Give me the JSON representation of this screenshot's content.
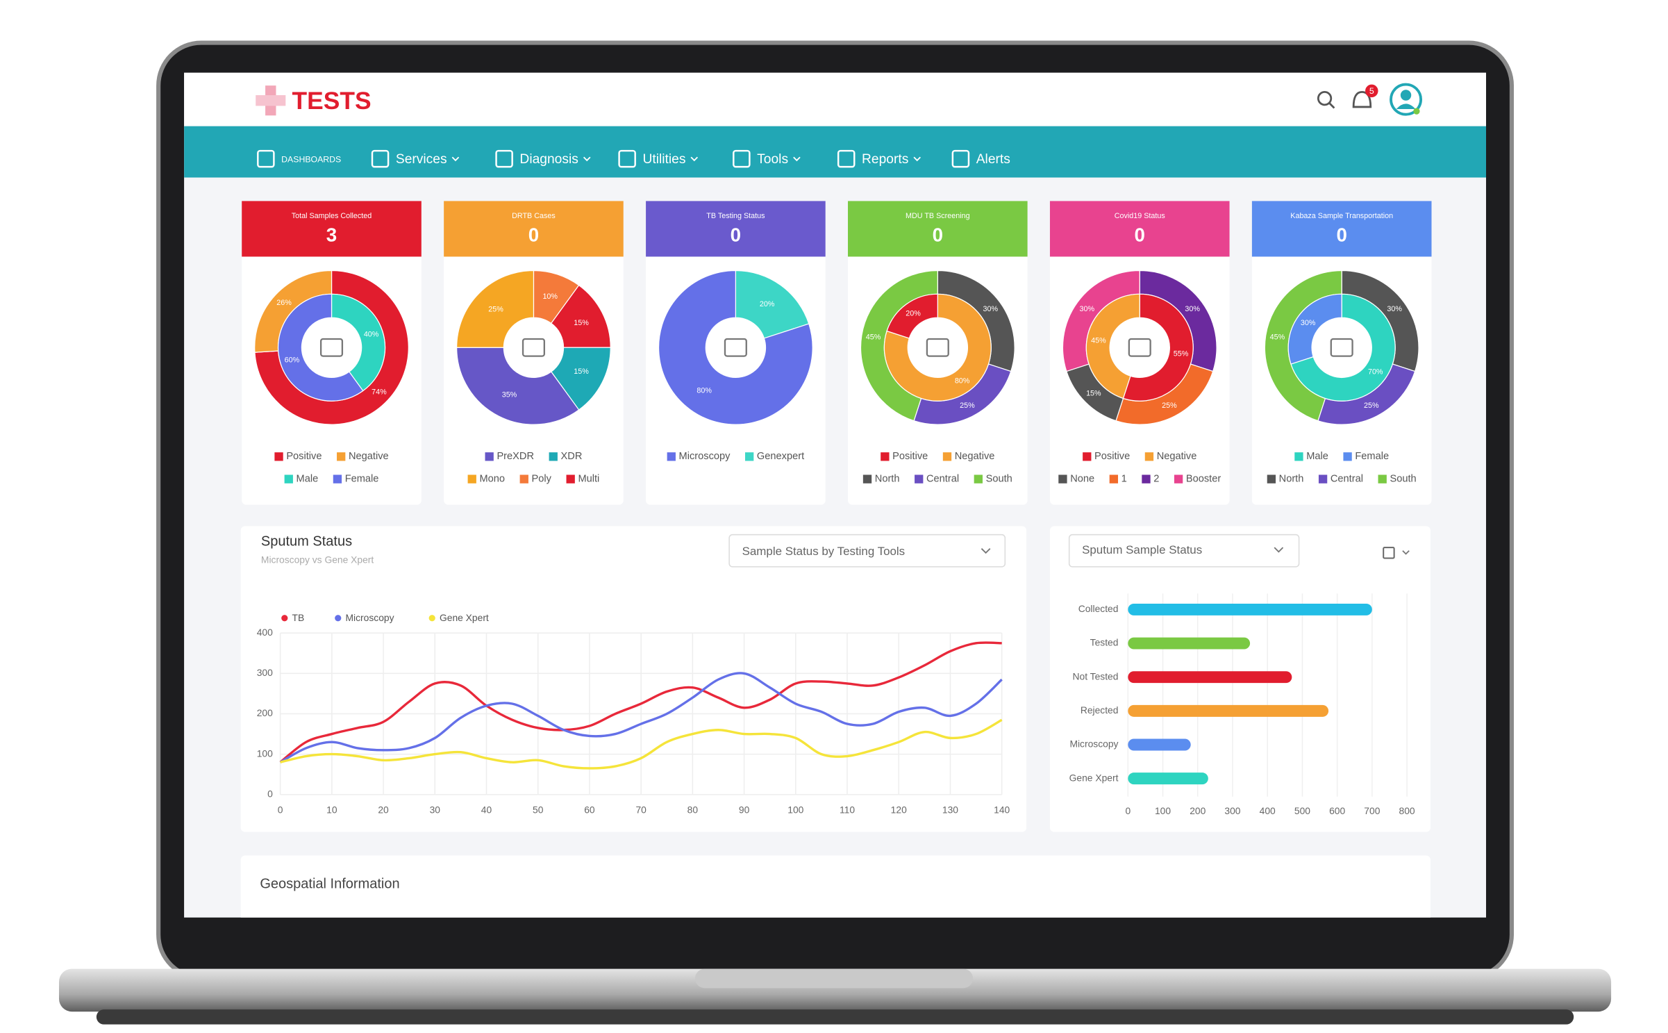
{
  "header": {
    "logo": "TESTS",
    "notifications": 5
  },
  "nav": [
    {
      "label": "DASHBOARDS",
      "has_menu": false
    },
    {
      "label": "Services",
      "has_menu": true
    },
    {
      "label": "Diagnosis",
      "has_menu": true
    },
    {
      "label": "Utilities",
      "has_menu": true
    },
    {
      "label": "Tools",
      "has_menu": true
    },
    {
      "label": "Reports",
      "has_menu": true
    },
    {
      "label": "Alerts",
      "has_menu": false
    }
  ],
  "cards": [
    {
      "title": "Total Samples Collected",
      "count": 3,
      "color": "#e11d2e",
      "chart": {
        "type": "donut",
        "rings": [
          {
            "values": [
              74,
              26
            ],
            "value_labels": [
              "74%",
              "26%"
            ],
            "colors": [
              "#e11d2e",
              "#f5a033"
            ]
          },
          {
            "values": [
              40,
              60
            ],
            "value_labels": [
              "40%",
              "60%"
            ],
            "colors": [
              "#2ed4c0",
              "#6470e8"
            ]
          }
        ],
        "legend": [
          [
            {
              "name": "Positive",
              "color": "#e11d2e"
            },
            {
              "name": "Negative",
              "color": "#f5a033"
            }
          ],
          [
            {
              "name": "Male",
              "color": "#2ed4c0"
            },
            {
              "name": "Female",
              "color": "#6470e8"
            }
          ]
        ]
      }
    },
    {
      "title": "DRTB Cases",
      "count": 0,
      "color": "#f5a033",
      "chart": {
        "type": "donut",
        "rings": [
          {
            "values": [
              10,
              15,
              15,
              35,
              25
            ],
            "value_labels": [
              "10%",
              "15%",
              "15%",
              "35%",
              "25%"
            ],
            "colors": [
              "#f47a3a",
              "#e11d2e",
              "#1ea9b5",
              "#6657c7",
              "#f5a623"
            ]
          }
        ],
        "legend": [
          [
            {
              "name": "PreXDR",
              "color": "#6657c7"
            },
            {
              "name": "XDR",
              "color": "#1ea9b5"
            }
          ],
          [
            {
              "name": "Mono",
              "color": "#f5a623"
            },
            {
              "name": "Poly",
              "color": "#f47a3a"
            },
            {
              "name": "Multi",
              "color": "#e11d2e"
            }
          ]
        ]
      }
    },
    {
      "title": "TB Testing Status",
      "count": 0,
      "color": "#6a5acd",
      "chart": {
        "type": "donut",
        "rings": [
          {
            "values": [
              20,
              80
            ],
            "value_labels": [
              "20%",
              "80%"
            ],
            "colors": [
              "#3dd6c6",
              "#6470e8"
            ]
          }
        ],
        "legend": [
          [
            {
              "name": "Microscopy",
              "color": "#6470e8"
            },
            {
              "name": "Genexpert",
              "color": "#3dd6c6"
            }
          ]
        ]
      }
    },
    {
      "title": "MDU TB Screening",
      "count": 0,
      "color": "#7ac943",
      "chart": {
        "type": "donut",
        "rings": [
          {
            "values": [
              30,
              25,
              45
            ],
            "value_labels": [
              "30%",
              "25%",
              "45%"
            ],
            "colors": [
              "#555555",
              "#6a4fc2",
              "#7ac943"
            ]
          },
          {
            "values": [
              80,
              20
            ],
            "value_labels": [
              "80%",
              "20%"
            ],
            "colors": [
              "#f5a033",
              "#e11d2e"
            ]
          }
        ],
        "legend": [
          [
            {
              "name": "Positive",
              "color": "#e11d2e"
            },
            {
              "name": "Negative",
              "color": "#f5a033"
            }
          ],
          [
            {
              "name": "North",
              "color": "#555555"
            },
            {
              "name": "Central",
              "color": "#6a4fc2"
            },
            {
              "name": "South",
              "color": "#7ac943"
            }
          ]
        ]
      }
    },
    {
      "title": "Covid19 Status",
      "count": 0,
      "color": "#e8438f",
      "chart": {
        "type": "donut",
        "rings": [
          {
            "values": [
              30,
              25,
              15,
              30
            ],
            "value_labels": [
              "30%",
              "25%",
              "15%",
              "30%"
            ],
            "colors": [
              "#6b2a9e",
              "#f26b2a",
              "#555555",
              "#e8438f"
            ]
          },
          {
            "values": [
              55,
              45
            ],
            "value_labels": [
              "55%",
              "45%"
            ],
            "colors": [
              "#e11d2e",
              "#f5a033"
            ]
          }
        ],
        "legend": [
          [
            {
              "name": "Positive",
              "color": "#e11d2e"
            },
            {
              "name": "Negative",
              "color": "#f5a033"
            }
          ],
          [
            {
              "name": "None",
              "color": "#555555"
            },
            {
              "name": "1",
              "color": "#f26b2a"
            },
            {
              "name": "2",
              "color": "#6b2a9e"
            },
            {
              "name": "Booster",
              "color": "#e8438f"
            }
          ]
        ]
      }
    },
    {
      "title": "Kabaza Sample Transportation",
      "count": 0,
      "color": "#5b8def",
      "chart": {
        "type": "donut",
        "rings": [
          {
            "values": [
              30,
              25,
              45
            ],
            "value_labels": [
              "30%",
              "25%",
              "45%"
            ],
            "colors": [
              "#555555",
              "#6a4fc2",
              "#7ac943"
            ]
          },
          {
            "values": [
              70,
              30
            ],
            "value_labels": [
              "70%",
              "30%"
            ],
            "colors": [
              "#2ed4c0",
              "#5b8def"
            ]
          }
        ],
        "legend": [
          [
            {
              "name": "Male",
              "color": "#2ed4c0"
            },
            {
              "name": "Female",
              "color": "#5b8def"
            }
          ],
          [
            {
              "name": "North",
              "color": "#555555"
            },
            {
              "name": "Central",
              "color": "#6a4fc2"
            },
            {
              "name": "South",
              "color": "#7ac943"
            }
          ]
        ]
      }
    }
  ],
  "sputum": {
    "title": "Sputum Status",
    "subtitle": "Microscopy vs Gene Xpert",
    "dropdown": "Sample Status by Testing Tools",
    "chart_data": {
      "type": "line",
      "x": [
        0,
        5,
        10,
        15,
        20,
        25,
        30,
        35,
        40,
        45,
        50,
        55,
        60,
        65,
        70,
        75,
        80,
        85,
        90,
        95,
        100,
        105,
        110,
        115,
        120,
        125,
        130,
        135,
        140
      ],
      "series": [
        {
          "name": "TB",
          "color": "#e8283a",
          "values": [
            80,
            130,
            150,
            165,
            180,
            230,
            275,
            270,
            220,
            185,
            165,
            160,
            170,
            200,
            225,
            255,
            265,
            240,
            215,
            235,
            275,
            280,
            275,
            270,
            290,
            320,
            355,
            375,
            375
          ]
        },
        {
          "name": "Microscopy",
          "color": "#6470e8",
          "values": [
            80,
            115,
            130,
            115,
            110,
            115,
            140,
            190,
            220,
            225,
            195,
            160,
            145,
            150,
            175,
            200,
            240,
            285,
            300,
            265,
            225,
            205,
            175,
            175,
            205,
            215,
            195,
            225,
            285
          ]
        },
        {
          "name": "Gene Xpert",
          "color": "#f5e43a",
          "values": [
            80,
            95,
            100,
            95,
            85,
            90,
            100,
            105,
            90,
            80,
            85,
            70,
            65,
            70,
            90,
            130,
            150,
            160,
            150,
            150,
            140,
            100,
            95,
            110,
            130,
            155,
            140,
            150,
            185
          ]
        }
      ],
      "xlim": [
        0,
        140
      ],
      "xticks": [
        0,
        10,
        20,
        30,
        40,
        50,
        60,
        70,
        80,
        90,
        100,
        110,
        120,
        130,
        140
      ],
      "ylim": [
        0,
        400
      ],
      "yticks": [
        0,
        100,
        200,
        300,
        400
      ],
      "grid": true
    }
  },
  "sample_status": {
    "dropdown": "Sputum Sample Status",
    "chart_data": {
      "type": "bar",
      "orientation": "horizontal",
      "categories": [
        "Collected",
        "Tested",
        "Not Tested",
        "Rejected",
        "Microscopy",
        "Gene Xpert"
      ],
      "values": [
        700,
        350,
        470,
        575,
        180,
        230
      ],
      "colors": [
        "#22bde6",
        "#7ac943",
        "#e11d2e",
        "#f5a033",
        "#5b8def",
        "#2ed4c0"
      ],
      "xlim": [
        0,
        800
      ],
      "xticks": [
        0,
        100,
        200,
        300,
        400,
        500,
        600,
        700,
        800
      ],
      "grid": true
    }
  },
  "geospatial": {
    "title": "Geospatial Information"
  }
}
